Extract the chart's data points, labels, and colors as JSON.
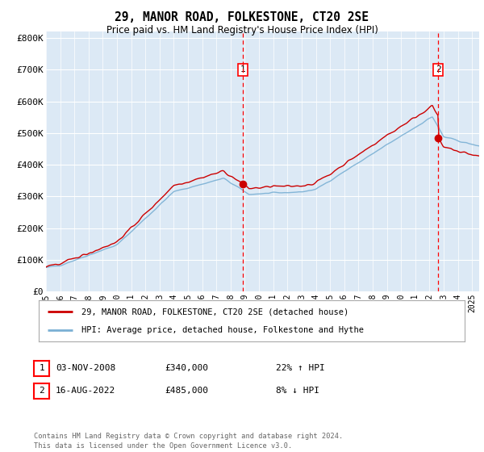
{
  "title": "29, MANOR ROAD, FOLKESTONE, CT20 2SE",
  "subtitle": "Price paid vs. HM Land Registry's House Price Index (HPI)",
  "legend_line1": "29, MANOR ROAD, FOLKESTONE, CT20 2SE (detached house)",
  "legend_line2": "HPI: Average price, detached house, Folkestone and Hythe",
  "annotation1_date": "03-NOV-2008",
  "annotation1_price": "£340,000",
  "annotation1_hpi": "22% ↑ HPI",
  "annotation1_year": 2008.84,
  "annotation1_value": 340000,
  "annotation2_date": "16-AUG-2022",
  "annotation2_price": "£485,000",
  "annotation2_hpi": "8% ↓ HPI",
  "annotation2_year": 2022.62,
  "annotation2_value": 485000,
  "footer": "Contains HM Land Registry data © Crown copyright and database right 2024.\nThis data is licensed under the Open Government Licence v3.0.",
  "bg_color": "#dce9f5",
  "red_line_color": "#cc0000",
  "blue_line_color": "#7ab0d4",
  "ylim": [
    0,
    820000
  ],
  "yticks": [
    0,
    100000,
    200000,
    300000,
    400000,
    500000,
    600000,
    700000,
    800000
  ],
  "ytick_labels": [
    "£0",
    "£100K",
    "£200K",
    "£300K",
    "£400K",
    "£500K",
    "£600K",
    "£700K",
    "£800K"
  ]
}
